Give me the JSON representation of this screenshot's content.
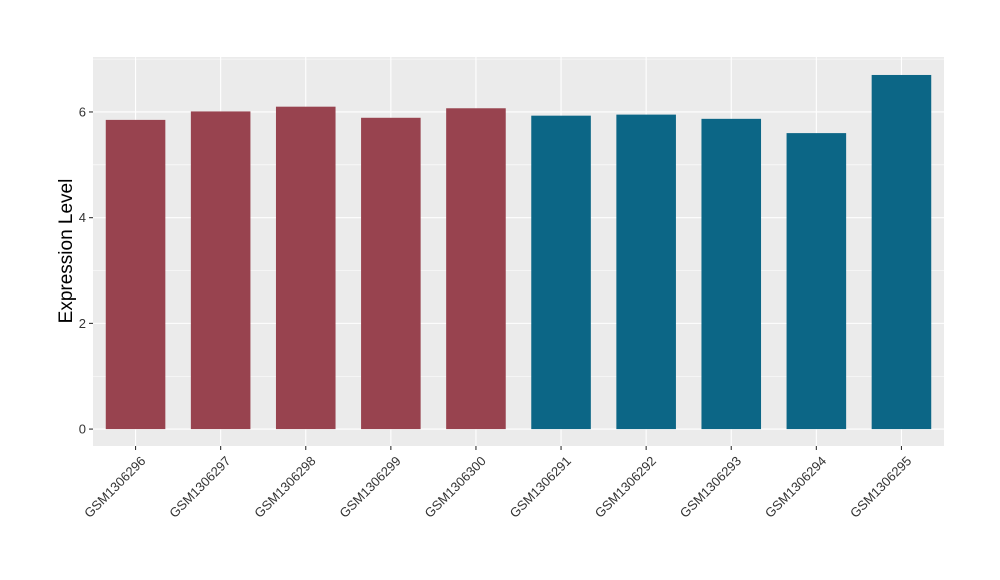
{
  "chart_data": {
    "type": "bar",
    "title": "",
    "xlabel": "",
    "ylabel": "Expression Level",
    "categories": [
      "GSM1306296",
      "GSM1306297",
      "GSM1306298",
      "GSM1306299",
      "GSM1306300",
      "GSM1306291",
      "GSM1306292",
      "GSM1306293",
      "GSM1306294",
      "GSM1306295"
    ],
    "values": [
      5.85,
      6.01,
      6.1,
      5.89,
      6.07,
      5.93,
      5.95,
      5.87,
      5.6,
      6.7
    ],
    "bar_colors": [
      "#98434F",
      "#98434F",
      "#98434F",
      "#98434F",
      "#98434F",
      "#0C6686",
      "#0C6686",
      "#0C6686",
      "#0C6686",
      "#0C6686"
    ],
    "ylim": [
      -0.32,
      7.04
    ],
    "yticks": [
      0,
      2,
      4,
      6
    ],
    "grid": true,
    "legend": "none",
    "panel_background": "#EBEBEB",
    "grid_color": "#FFFFFF"
  }
}
